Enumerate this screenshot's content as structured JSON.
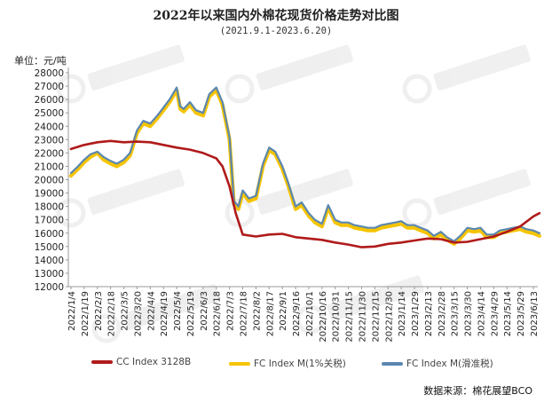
{
  "title": "2022年以来国内外棉花现货价格走势对比图",
  "subtitle": "(2021.9.1-2023.6.20)",
  "unit_label": "单位：元/吨",
  "source": "数据来源：棉花展望BCO",
  "chart_data": {
    "type": "line",
    "ylim": [
      12000,
      28000
    ],
    "y_ticks": [
      12000,
      13000,
      14000,
      15000,
      16000,
      17000,
      18000,
      19000,
      20000,
      21000,
      22000,
      23000,
      24000,
      25000,
      26000,
      27000,
      28000
    ],
    "x_ticks": [
      "2022/1/4",
      "2022/1/19",
      "2022/2/3",
      "2022/2/18",
      "2022/3/5",
      "2022/3/20",
      "2022/4/4",
      "2022/4/19",
      "2022/5/4",
      "2022/5/19",
      "2022/6/3",
      "2022/6/18",
      "2022/7/3",
      "2022/7/18",
      "2022/8/2",
      "2022/8/17",
      "2022/9/1",
      "2022/9/16",
      "2022/10/1",
      "2022/10/16",
      "2022/10/31",
      "2022/11/15",
      "2022/11/30",
      "2022/12/15",
      "2022/12/30",
      "2023/1/14",
      "2023/1/29",
      "2023/2/13",
      "2023/2/28",
      "2023/3/15",
      "2023/3/30",
      "2023/4/14",
      "2023/4/29",
      "2023/5/14",
      "2023/5/29",
      "2023/6/13"
    ],
    "grid": false,
    "legend_position": "bottom",
    "colors": {
      "cc": "#b01a1a",
      "fc1": "#f5c400",
      "fc2": "#5b87b0"
    },
    "series": [
      {
        "name": "CC Index 3128B",
        "x": [
          "2022/1/4",
          "2022/1/19",
          "2022/2/3",
          "2022/2/18",
          "2022/3/5",
          "2022/3/20",
          "2022/4/4",
          "2022/4/19",
          "2022/5/4",
          "2022/5/19",
          "2022/6/3",
          "2022/6/18",
          "2022/6/25",
          "2022/7/3",
          "2022/7/10",
          "2022/7/18",
          "2022/8/2",
          "2022/8/17",
          "2022/9/1",
          "2022/9/16",
          "2022/10/1",
          "2022/10/16",
          "2022/10/31",
          "2022/11/15",
          "2022/11/30",
          "2022/12/15",
          "2022/12/30",
          "2023/1/14",
          "2023/1/29",
          "2023/2/13",
          "2023/2/28",
          "2023/3/15",
          "2023/3/30",
          "2023/4/14",
          "2023/4/29",
          "2023/5/14",
          "2023/5/29",
          "2023/6/13",
          "2023/6/20"
        ],
        "values": [
          22300,
          22600,
          22800,
          22900,
          22800,
          22850,
          22800,
          22600,
          22400,
          22250,
          22000,
          21600,
          21000,
          19500,
          17500,
          15900,
          15750,
          15900,
          15950,
          15700,
          15600,
          15500,
          15300,
          15150,
          14950,
          15000,
          15200,
          15300,
          15450,
          15600,
          15550,
          15300,
          15350,
          15550,
          15750,
          16100,
          16500,
          17250,
          17500
        ]
      },
      {
        "name": "FC Index M(1%关税)",
        "x": [
          "2022/1/4",
          "2022/1/12",
          "2022/1/19",
          "2022/1/26",
          "2022/2/3",
          "2022/2/10",
          "2022/2/18",
          "2022/2/25",
          "2022/3/5",
          "2022/3/12",
          "2022/3/20",
          "2022/3/27",
          "2022/4/4",
          "2022/4/12",
          "2022/4/19",
          "2022/4/26",
          "2022/5/4",
          "2022/5/8",
          "2022/5/12",
          "2022/5/19",
          "2022/5/26",
          "2022/6/3",
          "2022/6/10",
          "2022/6/18",
          "2022/6/25",
          "2022/7/3",
          "2022/7/8",
          "2022/7/13",
          "2022/7/18",
          "2022/7/25",
          "2022/8/2",
          "2022/8/10",
          "2022/8/17",
          "2022/8/24",
          "2022/9/1",
          "2022/9/8",
          "2022/9/16",
          "2022/9/23",
          "2022/10/1",
          "2022/10/8",
          "2022/10/16",
          "2022/10/23",
          "2022/10/31",
          "2022/11/7",
          "2022/11/15",
          "2022/11/22",
          "2022/11/30",
          "2022/12/7",
          "2022/12/15",
          "2022/12/22",
          "2022/12/30",
          "2023/1/7",
          "2023/1/14",
          "2023/1/21",
          "2023/1/29",
          "2023/2/5",
          "2023/2/13",
          "2023/2/20",
          "2023/2/28",
          "2023/3/7",
          "2023/3/15",
          "2023/3/22",
          "2023/3/30",
          "2023/4/7",
          "2023/4/14",
          "2023/4/21",
          "2023/4/29",
          "2023/5/6",
          "2023/5/14",
          "2023/5/21",
          "2023/5/29",
          "2023/6/5",
          "2023/6/13",
          "2023/6/20"
        ],
        "values": [
          20300,
          20800,
          21300,
          21700,
          22000,
          21500,
          21200,
          21000,
          21300,
          21800,
          23500,
          24200,
          24000,
          24600,
          25200,
          25800,
          26700,
          25300,
          25100,
          25600,
          25000,
          24800,
          26200,
          26700,
          25600,
          23000,
          18200,
          17800,
          19000,
          18400,
          18600,
          21000,
          22200,
          21900,
          20800,
          19500,
          17800,
          18100,
          17300,
          16800,
          16500,
          17900,
          16800,
          16600,
          16600,
          16400,
          16300,
          16200,
          16200,
          16400,
          16500,
          16600,
          16700,
          16400,
          16400,
          16200,
          16000,
          15600,
          15900,
          15500,
          15200,
          15600,
          16200,
          16100,
          16200,
          15700,
          15700,
          16000,
          16100,
          16200,
          16300,
          16100,
          16000,
          15800
        ]
      },
      {
        "name": "FC Index M(滑准税)",
        "x": [
          "2022/1/4",
          "2022/1/12",
          "2022/1/19",
          "2022/1/26",
          "2022/2/3",
          "2022/2/10",
          "2022/2/18",
          "2022/2/25",
          "2022/3/5",
          "2022/3/12",
          "2022/3/20",
          "2022/3/27",
          "2022/4/4",
          "2022/4/12",
          "2022/4/19",
          "2022/4/26",
          "2022/5/4",
          "2022/5/8",
          "2022/5/12",
          "2022/5/19",
          "2022/5/26",
          "2022/6/3",
          "2022/6/10",
          "2022/6/18",
          "2022/6/25",
          "2022/7/3",
          "2022/7/8",
          "2022/7/13",
          "2022/7/18",
          "2022/7/25",
          "2022/8/2",
          "2022/8/10",
          "2022/8/17",
          "2022/8/24",
          "2022/9/1",
          "2022/9/8",
          "2022/9/16",
          "2022/9/23",
          "2022/10/1",
          "2022/10/8",
          "2022/10/16",
          "2022/10/23",
          "2022/10/31",
          "2022/11/7",
          "2022/11/15",
          "2022/11/22",
          "2022/11/30",
          "2022/12/7",
          "2022/12/15",
          "2022/12/22",
          "2022/12/30",
          "2023/1/7",
          "2023/1/14",
          "2023/1/21",
          "2023/1/29",
          "2023/2/5",
          "2023/2/13",
          "2023/2/20",
          "2023/2/28",
          "2023/3/7",
          "2023/3/15",
          "2023/3/22",
          "2023/3/30",
          "2023/4/7",
          "2023/4/14",
          "2023/4/21",
          "2023/4/29",
          "2023/5/6",
          "2023/5/14",
          "2023/5/21",
          "2023/5/29",
          "2023/6/5",
          "2023/6/13",
          "2023/6/20"
        ],
        "values": [
          20500,
          21000,
          21500,
          21900,
          22100,
          21700,
          21400,
          21200,
          21500,
          22000,
          23700,
          24400,
          24200,
          24800,
          25400,
          26000,
          26900,
          25500,
          25300,
          25800,
          25200,
          25000,
          26400,
          26900,
          25800,
          23200,
          18400,
          18000,
          19200,
          18600,
          18800,
          21200,
          22400,
          22100,
          21000,
          19700,
          18000,
          18300,
          17500,
          17000,
          16700,
          18100,
          17000,
          16800,
          16800,
          16600,
          16500,
          16400,
          16400,
          16600,
          16700,
          16800,
          16900,
          16600,
          16600,
          16400,
          16200,
          15800,
          16100,
          15700,
          15400,
          15800,
          16400,
          16300,
          16400,
          15900,
          15900,
          16200,
          16300,
          16400,
          16500,
          16300,
          16200,
          16000
        ]
      }
    ]
  }
}
